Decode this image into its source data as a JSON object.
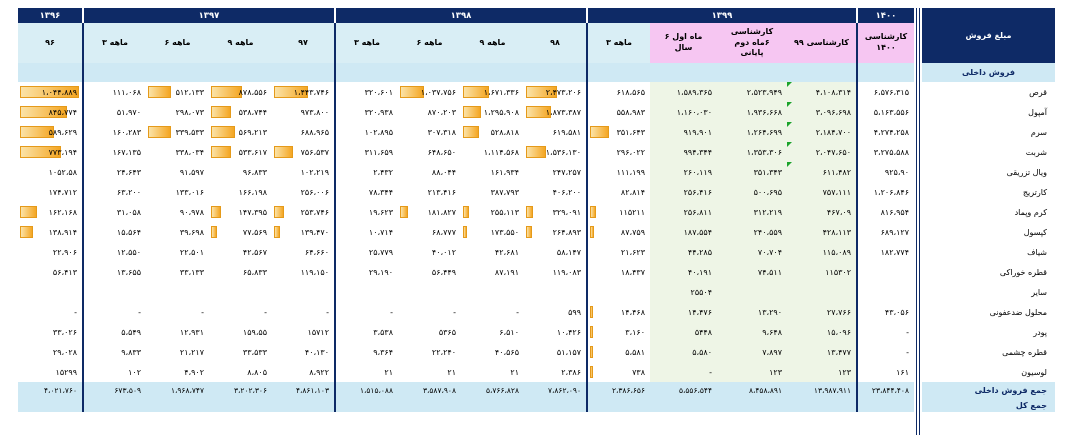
{
  "report": {
    "title": "مبلغ فروش",
    "domestic_section": "فروش داخلی",
    "domestic_total_label": "جمع فروش داخلی",
    "grand_total_label": "جمع کل"
  },
  "years": [
    "۱۳۹۶",
    "۱۳۹۷",
    "۱۳۹۸",
    "۱۳۹۹",
    "۱۴۰۰"
  ],
  "periods": [
    "۹۶",
    "۳ ماهه",
    "۶ ماهه",
    "۹ ماهه",
    "۹۷",
    "۳ ماهه",
    "۶ ماهه",
    "۹ ماهه",
    "۹۸",
    "۳ ماهه",
    "۶ ماه اول سال",
    "کارشناسی ۶ماه دوم پایانی",
    "کارشناسی ۹۹",
    "کارشناسی ۱۴۰۰"
  ],
  "products": [
    {
      "name": "قرص",
      "values": [
        "۱،۰۴۴،۸۸۹",
        "۱۱۱،۰۶۸",
        "۵۱۲،۱۳۳",
        "۸۷۸،۵۵۶",
        "۱،۴۴۳،۷۴۶",
        "۳۲۰،۶۰۱",
        "۱،۰۳۷،۷۵۶",
        "۱،۶۷۱،۳۳۶",
        "۲،۴۷۳،۲۰۶",
        "۶۱۸،۵۶۵",
        "۱،۵۸۹،۳۶۵",
        "۲،۵۲۳،۹۴۹",
        "۴،۱۰۸،۳۱۴",
        "۶،۵۷۶،۳۱۵"
      ]
    },
    {
      "name": "آمپول",
      "values": [
        "۸۴۵،۷۷۴",
        "۵۱،۹۷۰",
        "۲۹۸،۰۷۳",
        "۵۳۸،۷۴۴",
        "۹۷۳،۸۰۰",
        "۳۲۰،۹۳۸",
        "۸۷۰،۲۰۳",
        "۱،۲۹۵،۹۰۸",
        "۱،۸۷۳،۳۸۷",
        "۵۵۸،۹۸۳",
        "۱،۱۶۰،۰۳۰",
        "۱،۹۳۶،۶۶۸",
        "۳،۰۹۶،۶۹۸",
        "۵،۱۶۳،۵۵۶"
      ]
    },
    {
      "name": "سرم",
      "values": [
        "۵۸۹،۶۲۹",
        "۱۶۰،۲۸۳",
        "۳۳۹،۵۳۳",
        "۵۶۹،۲۱۳",
        "۶۸۸،۹۶۵",
        "۱۰۲،۸۹۵",
        "۳۰۷،۳۱۸",
        "۵۲۸،۸۱۸",
        "۶۱۹،۵۸۱",
        "۳۵۱،۶۴۳",
        "۹۱۹،۹۰۱",
        "۱،۲۶۴،۶۹۹",
        "۲،۱۸۴،۷۰۰",
        "۴،۲۷۴،۲۵۸"
      ]
    },
    {
      "name": "شربت",
      "values": [
        "۷۷۳،۱۹۴",
        "۱۶۷،۱۳۵",
        "۳۳۸،۰۳۴",
        "۵۳۳،۶۱۷",
        "۷۵۶،۵۳۷",
        "۳۱۱،۶۵۹",
        "۶۴۸،۶۵۰",
        "۱،۱۱۴،۵۶۸",
        "۱،۵۳۶،۱۳۰",
        "۲۹۶،۰۲۲",
        "۹۹۴،۳۴۴",
        "۱،۳۵۳،۳۰۶",
        "۲،۰۴۷،۶۵۰",
        "۳،۲۷۵،۵۸۸"
      ]
    },
    {
      "name": "ویال تزریقی",
      "values": [
        "۱۰۵۲،۵۸",
        "۲۴،۶۴۳",
        "۹۱،۵۹۷",
        "۹۶،۸۳۳",
        "۱۰۲،۲۱۹",
        "۲،۴۳۲",
        "۸۸،۰۴۴",
        "۱۶۱،۹۳۴",
        "۲۴۷،۲۵۷",
        "۱۱۱،۱۹۹",
        "۲۶۰،۱۱۹",
        "۳۵۱،۳۴۳",
        "۶۱۱،۴۸۲",
        "۹۲۵،۹۰"
      ]
    },
    {
      "name": "کارتریج",
      "values": [
        "۱۷۴،۷۱۲",
        "۶۳،۲۰۰",
        "۱۳۳،۰۱۶",
        "۱۶۶،۱۹۸",
        "۲۵۶،۰۰۶",
        "۷۸،۳۴۴",
        "۲۱۳،۴۱۶",
        "۳۸۷،۷۹۳",
        "۴۰۶،۲۰۰",
        "۸۲،۸۱۴",
        "۲۵۶،۴۱۶",
        "۵۰۰،۶۹۵",
        "۷۵۷،۱۱۱",
        "۱،۲۰۶،۸۴۶"
      ]
    },
    {
      "name": "کرم وپماد",
      "values": [
        "۱۶۲،۱۶۸",
        "۳۱،۰۵۸",
        "۹۰،۹۷۸",
        "۱۴۷،۳۹۵",
        "۲۵۳،۷۴۶",
        "۱۹،۶۲۳",
        "۱۸۱،۸۲۷",
        "۲۵۵،۱۱۳",
        "۳۲۹،۰۹۱",
        "۱۱۵۲۱۱",
        "۲۵۶،۸۱۱",
        "۳۱۲،۲۱۹",
        "۴۶۷،۰۹",
        "۸۱۶،۹۵۴"
      ]
    },
    {
      "name": "کپسول",
      "values": [
        "۱۳۸،۹۱۴",
        "۱۵،۵۶۴",
        "۳۹،۶۹۸",
        "۷۷،۵۶۹",
        "۱۳۹،۴۷۰",
        "۱۰،۷۱۴",
        "۶۸،۷۷۷",
        "۱۷۳،۵۵۰",
        "۲۶۴،۸۹۳",
        "۸۷،۷۵۹",
        "۱۸۷،۵۵۴",
        "۲۴۰،۵۵۹",
        "۴۲۸،۱۱۳",
        "۶۸۹،۱۲۷"
      ]
    },
    {
      "name": "شیاف",
      "values": [
        "۲۲،۹۰۶",
        "۱۲،۵۵۰",
        "۲۲،۵۰۱",
        "۴۲،۵۶۷",
        "۶۴،۶۶۰",
        "۲۵،۷۷۹",
        "۴۰،۰۱۲",
        "۴۲،۶۸۱",
        "۵۸،۱۴۷",
        "۲۱،۶۲۳",
        "۴۴،۲۸۵",
        "۷۰،۷۰۴",
        "۱۱۵،۰۸۹",
        "۱۸۲،۷۷۴"
      ]
    },
    {
      "name": "قطره خوراکی",
      "values": [
        "۵۶،۴۱۳",
        "۱۳،۶۵۵",
        "۳۳،۱۳۳",
        "۶۵،۸۳۳",
        "۱۱۹،۱۵۰",
        "۲۹،۱۹۰",
        "۵۶،۴۴۹",
        "۸۷،۱۹۱",
        "۱۱۹،۰۸۳",
        "۱۸،۴۳۷",
        "۴۰،۱۹۱",
        "۷۴،۵۱۱",
        "۱۱۵۳۰۲",
        ""
      ]
    },
    {
      "name": "سایر",
      "values": [
        "",
        "",
        "",
        "",
        "",
        "",
        "",
        "",
        "",
        "",
        "۲۵۵۰۴",
        "",
        "",
        ""
      ]
    },
    {
      "name": "محلول ضدعفونی",
      "values": [
        "-",
        "-",
        "-",
        "-",
        "-",
        "-",
        "-",
        "-",
        "۵۹۹",
        "۱۴،۴۶۸",
        "۱۴،۴۷۶",
        "۱۳،۲۹۰",
        "۲۷،۷۶۶",
        "۴۳،۰۵۶"
      ]
    },
    {
      "name": "پودر",
      "values": [
        "۳۳،۰۲۶",
        "۵،۵۴۹",
        "۱۲،۹۳۱",
        "۱۵۹،۵۵",
        "۱۵۷۱۲",
        "۳،۵۳۸",
        "۵۳۶۵",
        "۶،۵۱۰",
        "۱۰،۴۲۶",
        "۳،۱۶۰",
        "۵۴۴۸",
        "۹،۶۴۸",
        "۱۵،۰۹۶",
        "-"
      ]
    },
    {
      "name": "قطره چشمی",
      "values": [
        "۲۹،۰۲۸",
        "۹،۸۳۳",
        "۲۱،۲۱۷",
        "۳۳،۵۳۳",
        "۴۰،۱۳۰",
        "۹،۳۶۴",
        "۲۲،۲۴۰",
        "۴۰،۵۶۵",
        "۵۱،۱۵۷",
        "۵،۵۸۱",
        "۵،۵۸۰",
        "۷،۸۹۷",
        "۱۳،۴۷۷",
        "-"
      ]
    },
    {
      "name": "لوسیون",
      "values": [
        "۱۵۲۹۹",
        "۱۰۲",
        "۴،۹۰۲",
        "۸،۸۰۵",
        "۸،۹۲۲",
        "۲۱",
        "۲۱",
        "۲۱",
        "۲،۳۸۶",
        "۷۳۸",
        "-",
        "۱۲۳",
        "۱۲۳",
        "۱۶۱"
      ]
    }
  ],
  "domestic_totals": [
    "۴،۰۲۱،۷۶۰",
    "۶۷۳،۵۰۹",
    "۱،۹۶۸،۷۴۷",
    "۳،۲۰۲،۳۰۶",
    "۴،۸۶۱،۱۰۳",
    "۱،۵۱۵،۰۸۸",
    "۳،۵۸۷،۹۰۸",
    "۵،۷۶۶،۸۲۸",
    "۷،۸۶۲،۰۹۰",
    "۲،۳۸۶،۶۵۶",
    "۵،۵۵۶،۵۴۴",
    "۸،۴۵۸،۸۹۱",
    "۱۳،۹۸۷،۹۱۱",
    "۲۳،۸۴۴،۴۰۸"
  ],
  "bar_levels": [
    [
      1.0,
      0,
      0.4,
      0.55,
      0.6,
      0,
      0.42,
      0.45,
      0.55,
      0,
      0,
      0,
      0,
      0
    ],
    [
      0.8,
      0,
      0,
      0.35,
      0,
      0,
      0,
      0.32,
      0.43,
      0,
      0,
      0,
      0,
      0
    ],
    [
      0.58,
      0,
      0.4,
      0.42,
      0,
      0,
      0,
      0.28,
      0,
      0.33,
      0,
      0,
      0,
      0
    ],
    [
      0.7,
      0,
      0,
      0.35,
      0.34,
      0,
      0,
      0,
      0.35,
      0,
      0,
      0,
      0,
      0
    ],
    [
      0,
      0,
      0,
      0,
      0,
      0,
      0,
      0,
      0,
      0,
      0,
      0,
      0,
      0
    ],
    [
      0,
      0,
      0,
      0,
      0,
      0,
      0,
      0,
      0,
      0,
      0,
      0,
      0,
      0
    ],
    [
      0.28,
      0,
      0,
      0.17,
      0.17,
      0,
      0.14,
      0.1,
      0.13,
      0.1,
      0,
      0,
      0,
      0
    ],
    [
      0.22,
      0,
      0,
      0.1,
      0.1,
      0,
      0,
      0.07,
      0.1,
      0.07,
      0,
      0,
      0,
      0
    ],
    [
      0,
      0,
      0,
      0,
      0,
      0,
      0,
      0,
      0,
      0,
      0,
      0,
      0,
      0
    ],
    [
      0,
      0,
      0,
      0,
      0,
      0,
      0,
      0,
      0,
      0,
      0,
      0,
      0,
      0
    ],
    [
      0,
      0,
      0,
      0,
      0,
      0,
      0,
      0,
      0,
      0,
      0,
      0,
      0,
      0
    ],
    [
      0,
      0,
      0,
      0,
      0,
      0,
      0,
      0,
      0,
      0.03,
      0,
      0,
      0,
      0
    ],
    [
      0,
      0,
      0,
      0,
      0,
      0,
      0,
      0,
      0,
      0.03,
      0,
      0,
      0,
      0
    ],
    [
      0,
      0,
      0,
      0,
      0,
      0,
      0,
      0,
      0,
      0.03,
      0,
      0,
      0,
      0
    ],
    [
      0,
      0,
      0,
      0,
      0,
      0,
      0,
      0,
      0,
      0.03,
      0,
      0,
      0,
      0
    ]
  ],
  "trend_markers": [
    [
      0,
      0,
      0,
      0,
      0,
      0,
      0,
      0,
      0,
      0,
      0,
      0,
      1,
      0
    ],
    [
      0,
      0,
      0,
      0,
      0,
      0,
      0,
      0,
      0,
      0,
      0,
      0,
      1,
      0
    ],
    [
      0,
      0,
      0,
      0,
      0,
      0,
      0,
      0,
      0,
      0,
      0,
      0,
      1,
      0
    ],
    [
      0,
      0,
      0,
      0,
      0,
      0,
      0,
      0,
      0,
      0,
      0,
      0,
      1,
      0
    ],
    [
      0,
      0,
      0,
      0,
      0,
      0,
      0,
      0,
      0,
      0,
      0,
      0,
      1,
      0
    ],
    [
      0,
      0,
      0,
      0,
      0,
      0,
      0,
      0,
      0,
      0,
      0,
      0,
      0,
      0
    ],
    [
      0,
      0,
      0,
      0,
      0,
      0,
      0,
      0,
      0,
      0,
      0,
      0,
      0,
      0
    ],
    [
      0,
      0,
      0,
      0,
      0,
      0,
      0,
      0,
      0,
      0,
      0,
      0,
      0,
      0
    ],
    [
      0,
      0,
      0,
      0,
      0,
      0,
      0,
      0,
      0,
      0,
      0,
      0,
      0,
      0
    ],
    [
      0,
      0,
      0,
      0,
      0,
      0,
      0,
      0,
      0,
      0,
      0,
      0,
      0,
      0
    ],
    [
      0,
      0,
      0,
      0,
      0,
      0,
      0,
      0,
      0,
      0,
      0,
      0,
      0,
      0
    ],
    [
      0,
      0,
      0,
      0,
      0,
      0,
      0,
      0,
      0,
      0,
      0,
      0,
      0,
      0
    ],
    [
      0,
      0,
      0,
      0,
      0,
      0,
      0,
      0,
      0,
      0,
      0,
      0,
      0,
      0
    ],
    [
      0,
      0,
      0,
      0,
      0,
      0,
      0,
      0,
      0,
      0,
      0,
      0,
      0,
      0
    ],
    [
      0,
      0,
      0,
      0,
      0,
      0,
      0,
      0,
      0,
      0,
      0,
      0,
      0,
      0
    ]
  ],
  "colors": {
    "header_navy": "#0e2a66",
    "header_light": "#d9eef5",
    "section_band": "#cfe9f4",
    "estimate_pink": "#f6c6f2",
    "estimate_green": "#eef5e6",
    "databar_orange": "#f4a623",
    "trend_green": "#1aa32a"
  }
}
